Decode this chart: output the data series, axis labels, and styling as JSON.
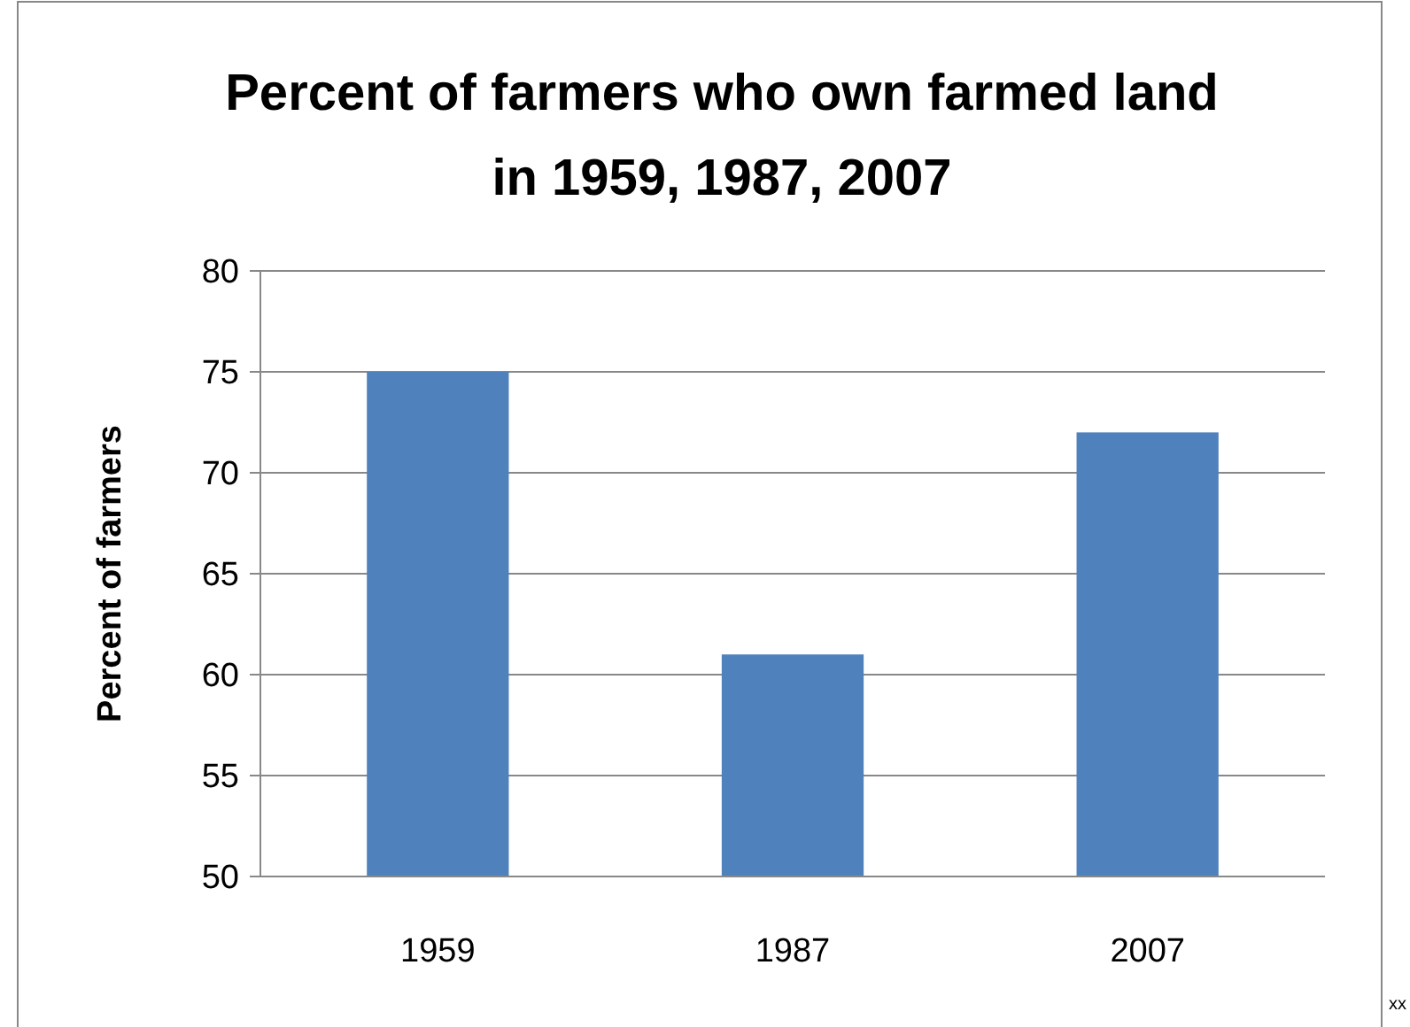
{
  "chart_data": {
    "type": "bar",
    "title": "Percent of farmers who own farmed land in 1959, 1987, 2007",
    "ylabel": "Percent of farmers",
    "categories": [
      "1959",
      "1987",
      "2007"
    ],
    "values": [
      75,
      61,
      72
    ],
    "color": "#4f81bd",
    "ylim": [
      50,
      80
    ],
    "yticks": [
      50,
      55,
      60,
      65,
      70,
      75,
      80
    ],
    "grid": "y",
    "annotations": [
      "xx"
    ]
  }
}
